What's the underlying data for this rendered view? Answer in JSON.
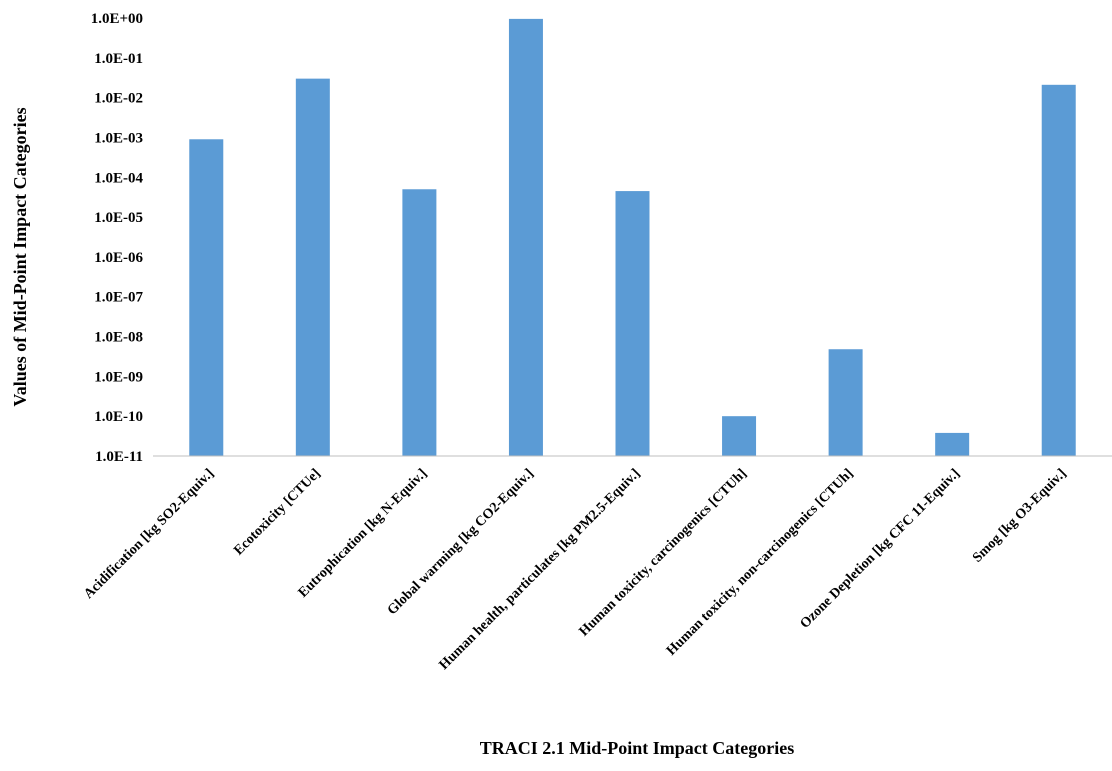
{
  "chart_data": {
    "type": "bar",
    "title": "",
    "xlabel": "TRACI 2.1 Mid-Point Impact Categories",
    "ylabel": "Values of Mid-Point Impact Categories",
    "yscale": "log",
    "ylim": [
      1e-11,
      1
    ],
    "yticks": [
      "1.0E-11",
      "1.0E-10",
      "1.0E-09",
      "1.0E-08",
      "1.0E-07",
      "1.0E-06",
      "1.0E-05",
      "1.0E-04",
      "1.0E-03",
      "1.0E-02",
      "1.0E-01",
      "1.0E+00"
    ],
    "grid": false,
    "legend": "none",
    "bar_color": "#5b9bd5",
    "categories": [
      "Acidification [kg SO2-Equiv.]",
      "Ecotoxicity [CTUe]",
      "Eutrophication [kg N-Equiv.]",
      "Global warming [kg CO2-Equiv.]",
      "Human health, particulates [kg PM2.5-Equiv.]",
      "Human toxicity, carcinogenics [CTUh]",
      "Human toxicity, non-carcinogenics [CTUh]",
      "Ozone Depletion [kg CFC 11-Equiv.]",
      "Smog [kg O3-Equiv.]"
    ],
    "values": [
      0.0009,
      0.03,
      5e-05,
      0.95,
      4.5e-05,
      1e-10,
      4.8e-09,
      3.8e-11,
      0.021
    ]
  }
}
